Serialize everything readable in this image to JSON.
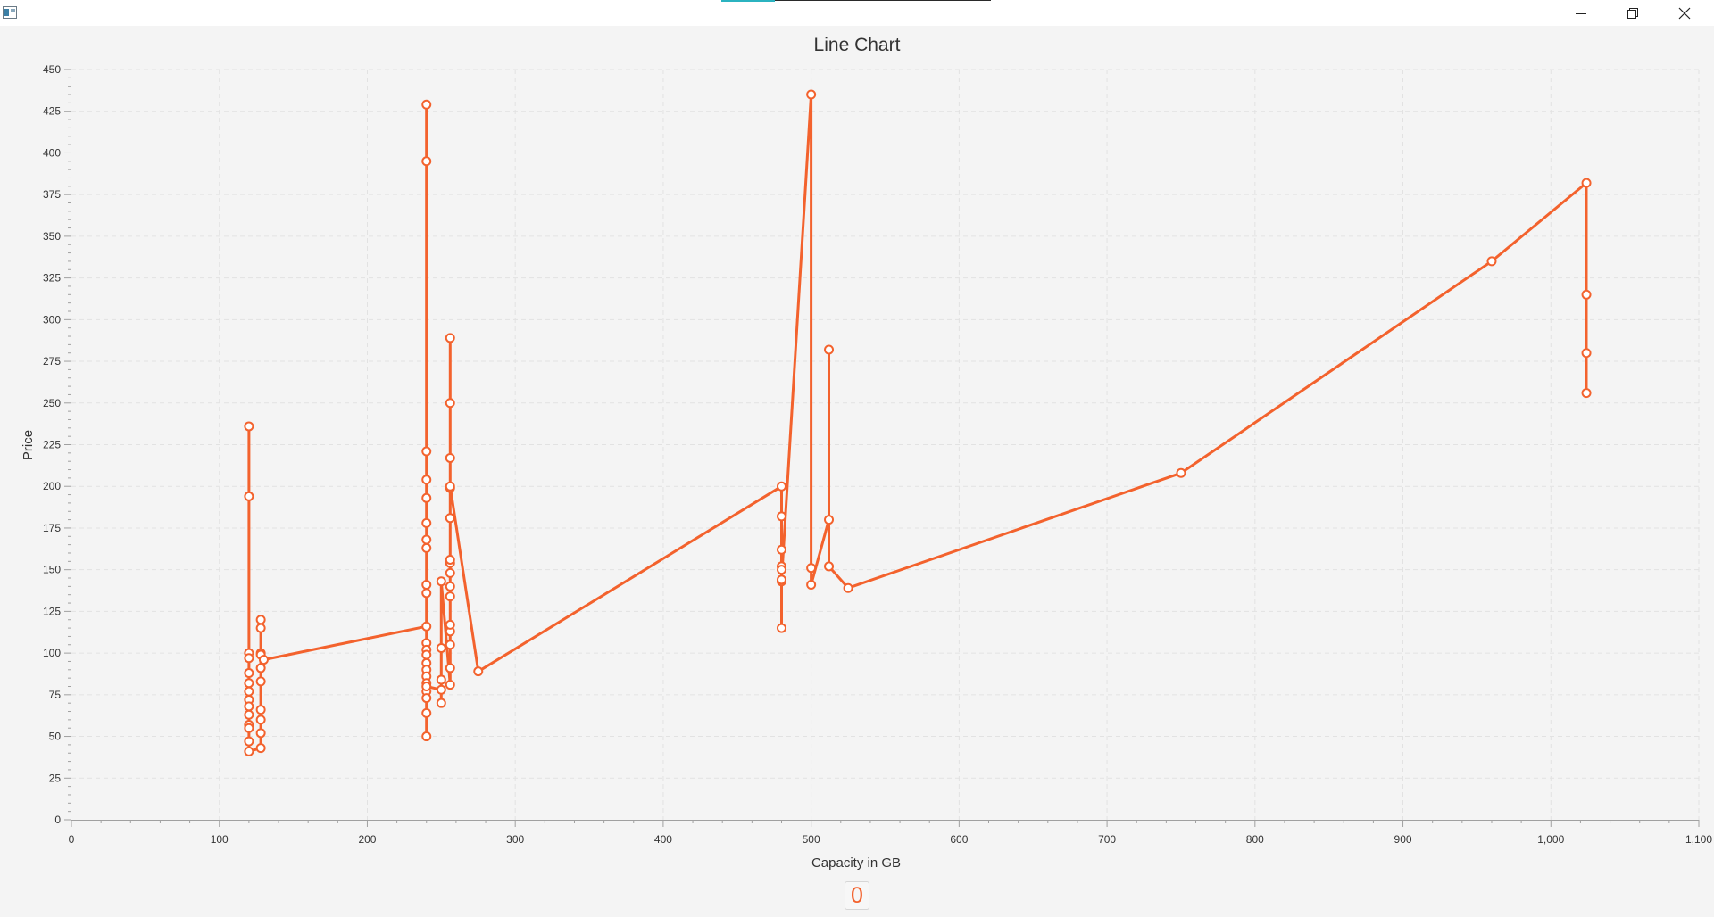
{
  "window": {
    "minimize_icon": "minimize-icon",
    "maximize_icon": "restore-icon",
    "close_icon": "close-icon"
  },
  "legend": {
    "label": "0"
  },
  "colors": {
    "series": "#f3622d",
    "grid": "#e2e2e2",
    "axis": "#a0a0a0",
    "background": "#f4f4f4"
  },
  "chart_data": {
    "type": "line",
    "title": "Line Chart",
    "xlabel": "Capacity in GB",
    "ylabel": "Price",
    "xlim": [
      0,
      1100
    ],
    "ylim": [
      0,
      450
    ],
    "x_ticks": [
      "0",
      "100",
      "200",
      "300",
      "400",
      "500",
      "600",
      "700",
      "800",
      "900",
      "1,000",
      "1,100"
    ],
    "y_ticks": [
      "0",
      "25",
      "50",
      "75",
      "100",
      "125",
      "150",
      "175",
      "200",
      "225",
      "250",
      "275",
      "300",
      "325",
      "350",
      "375",
      "400",
      "425",
      "450"
    ],
    "grid": true,
    "legend_position": "bottom",
    "series": [
      {
        "name": "0",
        "points": [
          [
            120,
            236
          ],
          [
            120,
            194
          ],
          [
            120,
            100
          ],
          [
            120,
            97
          ],
          [
            120,
            88
          ],
          [
            120,
            82
          ],
          [
            120,
            77
          ],
          [
            120,
            72
          ],
          [
            120,
            68
          ],
          [
            120,
            63
          ],
          [
            120,
            57
          ],
          [
            120,
            55
          ],
          [
            120,
            47
          ],
          [
            120,
            41
          ],
          [
            128,
            43
          ],
          [
            128,
            52
          ],
          [
            128,
            60
          ],
          [
            128,
            66
          ],
          [
            128,
            83
          ],
          [
            128,
            91
          ],
          [
            128,
            100
          ],
          [
            128,
            115
          ],
          [
            128,
            120
          ],
          [
            128,
            99
          ],
          [
            130,
            96
          ],
          [
            240,
            116
          ],
          [
            240,
            429
          ],
          [
            240,
            395
          ],
          [
            240,
            221
          ],
          [
            240,
            204
          ],
          [
            240,
            193
          ],
          [
            240,
            178
          ],
          [
            240,
            168
          ],
          [
            240,
            163
          ],
          [
            240,
            141
          ],
          [
            240,
            136
          ],
          [
            240,
            106
          ],
          [
            240,
            102
          ],
          [
            240,
            99
          ],
          [
            240,
            94
          ],
          [
            240,
            90
          ],
          [
            240,
            86
          ],
          [
            240,
            82
          ],
          [
            240,
            77
          ],
          [
            240,
            73
          ],
          [
            240,
            64
          ],
          [
            240,
            50
          ],
          [
            240,
            80
          ],
          [
            250,
            78
          ],
          [
            250,
            70
          ],
          [
            250,
            84
          ],
          [
            250,
            103
          ],
          [
            250,
            143
          ],
          [
            256,
            81
          ],
          [
            256,
            91
          ],
          [
            256,
            105
          ],
          [
            256,
            113
          ],
          [
            256,
            117
          ],
          [
            256,
            134
          ],
          [
            256,
            140
          ],
          [
            256,
            148
          ],
          [
            256,
            154
          ],
          [
            256,
            156
          ],
          [
            256,
            181
          ],
          [
            256,
            199
          ],
          [
            256,
            217
          ],
          [
            256,
            250
          ],
          [
            256,
            289
          ],
          [
            256,
            200
          ],
          [
            275,
            89
          ],
          [
            480,
            200
          ],
          [
            480,
            182
          ],
          [
            480,
            162
          ],
          [
            480,
            152
          ],
          [
            480,
            150
          ],
          [
            480,
            143
          ],
          [
            480,
            115
          ],
          [
            480,
            144
          ],
          [
            500,
            435
          ],
          [
            500,
            151
          ],
          [
            500,
            141
          ],
          [
            512,
            180
          ],
          [
            512,
            282
          ],
          [
            512,
            152
          ],
          [
            525,
            139
          ],
          [
            750,
            208
          ],
          [
            960,
            335
          ],
          [
            1024,
            382
          ],
          [
            1024,
            315
          ],
          [
            1024,
            280
          ],
          [
            1024,
            256
          ]
        ]
      }
    ]
  }
}
